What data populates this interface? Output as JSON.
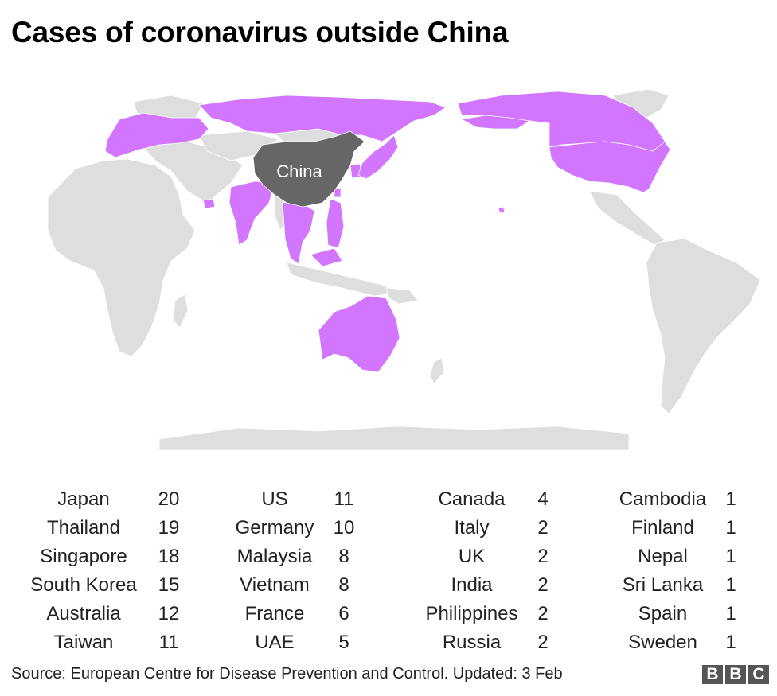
{
  "title": "Cases of coronavirus outside China",
  "map": {
    "highlight_label": "China",
    "colors": {
      "china": "#666666",
      "affected": "#d376ff",
      "unaffected": "#dedede",
      "border": "#ffffff"
    }
  },
  "countries": [
    [
      {
        "name": "Japan",
        "value": "20"
      },
      {
        "name": "Thailand",
        "value": "19"
      },
      {
        "name": "Singapore",
        "value": "18"
      },
      {
        "name": "South Korea",
        "value": "15"
      },
      {
        "name": "Australia",
        "value": "12"
      },
      {
        "name": "Taiwan",
        "value": "11"
      }
    ],
    [
      {
        "name": "US",
        "value": "11"
      },
      {
        "name": "Germany",
        "value": "10"
      },
      {
        "name": "Malaysia",
        "value": "8"
      },
      {
        "name": "Vietnam",
        "value": "8"
      },
      {
        "name": "France",
        "value": "6"
      },
      {
        "name": "UAE",
        "value": "5"
      }
    ],
    [
      {
        "name": "Canada",
        "value": "4"
      },
      {
        "name": "Italy",
        "value": "2"
      },
      {
        "name": "UK",
        "value": "2"
      },
      {
        "name": "India",
        "value": "2"
      },
      {
        "name": "Philippines",
        "value": "2"
      },
      {
        "name": "Russia",
        "value": "2"
      }
    ],
    [
      {
        "name": "Cambodia",
        "value": "1"
      },
      {
        "name": "Finland",
        "value": "1"
      },
      {
        "name": "Nepal",
        "value": "1"
      },
      {
        "name": "Sri Lanka",
        "value": "1"
      },
      {
        "name": "Spain",
        "value": "1"
      },
      {
        "name": "Sweden",
        "value": "1"
      }
    ]
  ],
  "footer": {
    "source": "Source: European Centre for Disease Prevention and Control. Updated: 3 Feb",
    "logo_letters": [
      "B",
      "B",
      "C"
    ]
  }
}
